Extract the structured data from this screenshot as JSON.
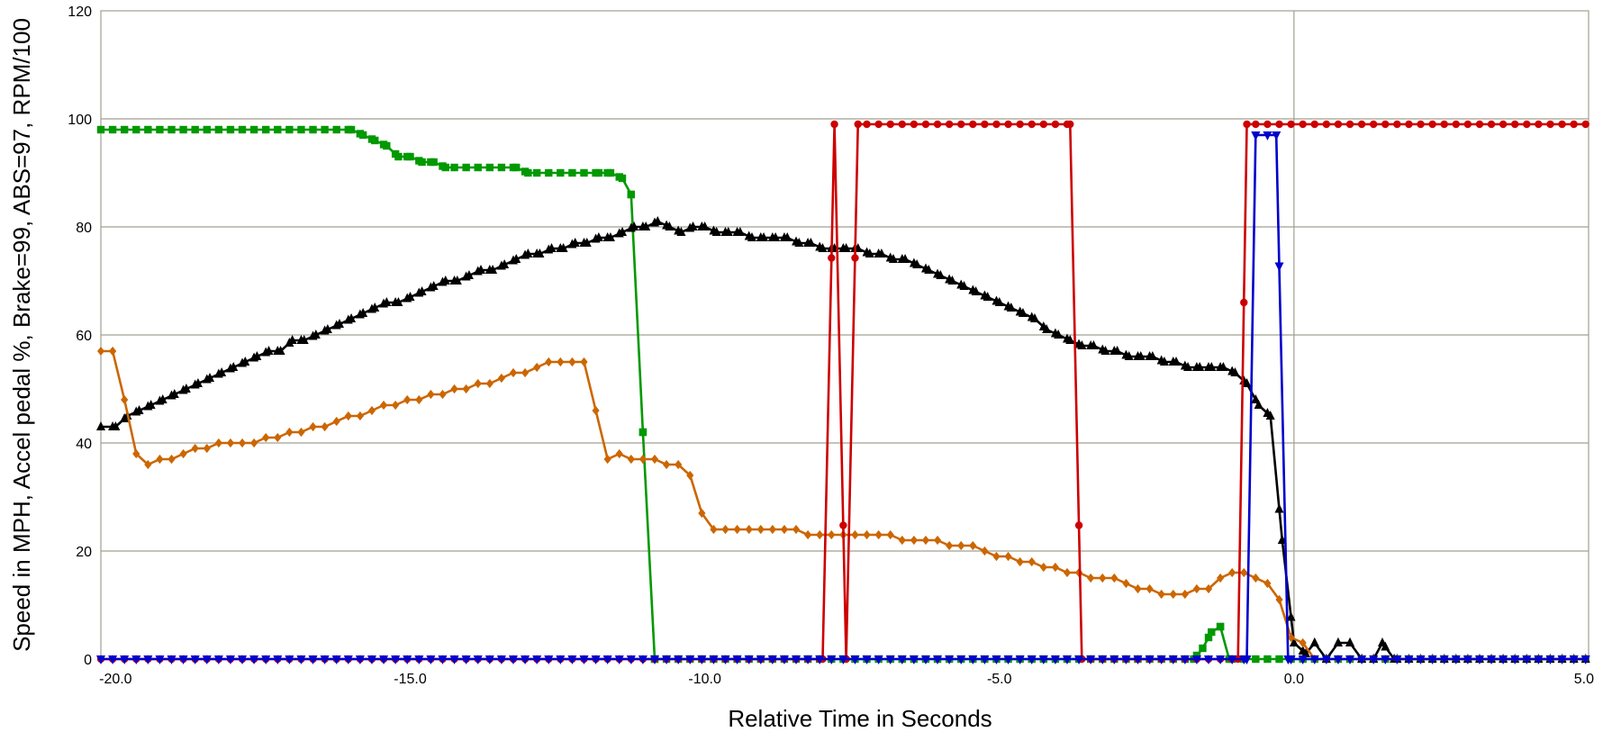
{
  "chart_data": {
    "type": "line",
    "title": "",
    "xlabel": "Relative Time in Seconds",
    "ylabel": "Speed in MPH, Accel pedal %, Brake=99, ABS=97, RPM/100",
    "xlim": [
      -20.25,
      5.0
    ],
    "ylim": [
      0,
      120
    ],
    "x_ticks": [
      -20.0,
      -15.0,
      -10.0,
      -5.0,
      0.0,
      5.0
    ],
    "x_tick_labels": [
      "-20.0",
      "-15.0",
      "-10.0",
      "-5.0",
      "0.0",
      "5.0"
    ],
    "y_ticks": [
      0,
      20,
      40,
      60,
      80,
      100,
      120
    ],
    "y_tick_labels": [
      "0",
      "20",
      "40",
      "60",
      "80",
      "100",
      "120"
    ],
    "grid": true,
    "reference_line_x": 0.0,
    "legend": "none",
    "series": [
      {
        "color": "#009900",
        "marker": "square",
        "points": [
          [
            -20.25,
            98
          ],
          [
            -16.0,
            98
          ],
          [
            -15.8,
            97
          ],
          [
            -15.6,
            96
          ],
          [
            -15.4,
            95
          ],
          [
            -15.2,
            93
          ],
          [
            -15.0,
            93
          ],
          [
            -14.8,
            92
          ],
          [
            -14.6,
            92
          ],
          [
            -14.4,
            91
          ],
          [
            -13.2,
            91
          ],
          [
            -13.0,
            90
          ],
          [
            -11.8,
            90
          ],
          [
            -11.6,
            90
          ],
          [
            -11.4,
            89
          ],
          [
            -11.25,
            86
          ],
          [
            -11.05,
            42
          ],
          [
            -10.85,
            0
          ],
          [
            -1.7,
            0
          ],
          [
            -1.55,
            2
          ],
          [
            -1.4,
            5
          ],
          [
            -1.25,
            6
          ],
          [
            -1.1,
            0
          ],
          [
            5.0,
            0
          ]
        ]
      },
      {
        "color": "#000000",
        "marker": "triangle-up",
        "points": [
          [
            -20.25,
            43
          ],
          [
            -20.0,
            43
          ],
          [
            -19.8,
            45
          ],
          [
            -19.6,
            46
          ],
          [
            -19.4,
            47
          ],
          [
            -19.2,
            48
          ],
          [
            -19.0,
            49
          ],
          [
            -18.8,
            50
          ],
          [
            -18.6,
            51
          ],
          [
            -18.4,
            52
          ],
          [
            -18.2,
            53
          ],
          [
            -18.0,
            54
          ],
          [
            -17.8,
            55
          ],
          [
            -17.6,
            56
          ],
          [
            -17.4,
            57
          ],
          [
            -17.2,
            57
          ],
          [
            -17.0,
            59
          ],
          [
            -16.8,
            59
          ],
          [
            -16.6,
            60
          ],
          [
            -16.4,
            61
          ],
          [
            -16.2,
            62
          ],
          [
            -16.0,
            63
          ],
          [
            -15.8,
            64
          ],
          [
            -15.6,
            65
          ],
          [
            -15.4,
            66
          ],
          [
            -15.2,
            66
          ],
          [
            -15.0,
            67
          ],
          [
            -14.8,
            68
          ],
          [
            -14.6,
            69
          ],
          [
            -14.4,
            70
          ],
          [
            -14.2,
            70
          ],
          [
            -14.0,
            71
          ],
          [
            -13.8,
            72
          ],
          [
            -13.6,
            72
          ],
          [
            -13.4,
            73
          ],
          [
            -13.2,
            74
          ],
          [
            -13.0,
            75
          ],
          [
            -12.8,
            75
          ],
          [
            -12.6,
            76
          ],
          [
            -12.4,
            76
          ],
          [
            -12.2,
            77
          ],
          [
            -12.0,
            77
          ],
          [
            -11.8,
            78
          ],
          [
            -11.6,
            78
          ],
          [
            -11.4,
            79
          ],
          [
            -11.2,
            80
          ],
          [
            -11.0,
            80
          ],
          [
            -10.8,
            81
          ],
          [
            -10.6,
            80
          ],
          [
            -10.4,
            79
          ],
          [
            -10.2,
            80
          ],
          [
            -10.0,
            80
          ],
          [
            -9.8,
            79
          ],
          [
            -9.6,
            79
          ],
          [
            -9.4,
            79
          ],
          [
            -9.2,
            78
          ],
          [
            -9.0,
            78
          ],
          [
            -8.8,
            78
          ],
          [
            -8.6,
            78
          ],
          [
            -8.4,
            77
          ],
          [
            -8.2,
            77
          ],
          [
            -8.0,
            76
          ],
          [
            -7.8,
            76
          ],
          [
            -7.6,
            76
          ],
          [
            -7.4,
            76
          ],
          [
            -7.2,
            75
          ],
          [
            -7.0,
            75
          ],
          [
            -6.8,
            74
          ],
          [
            -6.6,
            74
          ],
          [
            -6.4,
            73
          ],
          [
            -6.2,
            72
          ],
          [
            -6.0,
            71
          ],
          [
            -5.8,
            70
          ],
          [
            -5.6,
            69
          ],
          [
            -5.4,
            68
          ],
          [
            -5.2,
            67
          ],
          [
            -5.0,
            66
          ],
          [
            -4.8,
            65
          ],
          [
            -4.6,
            64
          ],
          [
            -4.4,
            63
          ],
          [
            -4.2,
            61
          ],
          [
            -4.0,
            60
          ],
          [
            -3.8,
            59
          ],
          [
            -3.6,
            58
          ],
          [
            -3.4,
            58
          ],
          [
            -3.2,
            57
          ],
          [
            -3.0,
            57
          ],
          [
            -2.8,
            56
          ],
          [
            -2.6,
            56
          ],
          [
            -2.4,
            56
          ],
          [
            -2.2,
            55
          ],
          [
            -2.0,
            55
          ],
          [
            -1.8,
            54
          ],
          [
            -1.6,
            54
          ],
          [
            -1.4,
            54
          ],
          [
            -1.2,
            54
          ],
          [
            -1.0,
            53
          ],
          [
            -0.8,
            51
          ],
          [
            -0.6,
            47
          ],
          [
            -0.4,
            45
          ],
          [
            -0.2,
            22
          ],
          [
            0.0,
            3
          ],
          [
            0.2,
            1
          ],
          [
            0.35,
            3
          ],
          [
            0.55,
            0
          ],
          [
            0.75,
            3
          ],
          [
            0.95,
            3
          ],
          [
            1.15,
            0
          ],
          [
            1.35,
            0
          ],
          [
            1.5,
            3
          ],
          [
            1.7,
            0
          ],
          [
            5.0,
            0
          ]
        ]
      },
      {
        "color": "#CC6600",
        "marker": "diamond",
        "points": [
          [
            -20.25,
            57
          ],
          [
            -20.05,
            57
          ],
          [
            -19.85,
            48
          ],
          [
            -19.65,
            38
          ],
          [
            -19.45,
            36
          ],
          [
            -19.25,
            37
          ],
          [
            -19.05,
            37
          ],
          [
            -18.85,
            38
          ],
          [
            -18.65,
            39
          ],
          [
            -18.45,
            39
          ],
          [
            -18.25,
            40
          ],
          [
            -18.05,
            40
          ],
          [
            -17.85,
            40
          ],
          [
            -17.65,
            40
          ],
          [
            -17.45,
            41
          ],
          [
            -17.25,
            41
          ],
          [
            -17.05,
            42
          ],
          [
            -16.85,
            42
          ],
          [
            -16.65,
            43
          ],
          [
            -16.45,
            43
          ],
          [
            -16.25,
            44
          ],
          [
            -16.05,
            45
          ],
          [
            -15.85,
            45
          ],
          [
            -15.65,
            46
          ],
          [
            -15.45,
            47
          ],
          [
            -15.25,
            47
          ],
          [
            -15.05,
            48
          ],
          [
            -14.85,
            48
          ],
          [
            -14.65,
            49
          ],
          [
            -14.45,
            49
          ],
          [
            -14.25,
            50
          ],
          [
            -14.05,
            50
          ],
          [
            -13.85,
            51
          ],
          [
            -13.65,
            51
          ],
          [
            -13.45,
            52
          ],
          [
            -13.25,
            53
          ],
          [
            -13.05,
            53
          ],
          [
            -12.85,
            54
          ],
          [
            -12.65,
            55
          ],
          [
            -12.45,
            55
          ],
          [
            -12.25,
            55
          ],
          [
            -12.05,
            55
          ],
          [
            -11.85,
            46
          ],
          [
            -11.65,
            37
          ],
          [
            -11.45,
            38
          ],
          [
            -11.25,
            37
          ],
          [
            -11.05,
            37
          ],
          [
            -10.85,
            37
          ],
          [
            -10.65,
            36
          ],
          [
            -10.45,
            36
          ],
          [
            -10.25,
            34
          ],
          [
            -10.05,
            27
          ],
          [
            -9.85,
            24
          ],
          [
            -9.65,
            24
          ],
          [
            -9.45,
            24
          ],
          [
            -9.25,
            24
          ],
          [
            -9.05,
            24
          ],
          [
            -8.85,
            24
          ],
          [
            -8.65,
            24
          ],
          [
            -8.45,
            24
          ],
          [
            -8.25,
            23
          ],
          [
            -8.05,
            23
          ],
          [
            -7.85,
            23
          ],
          [
            -7.65,
            23
          ],
          [
            -7.45,
            23
          ],
          [
            -7.25,
            23
          ],
          [
            -7.05,
            23
          ],
          [
            -6.85,
            23
          ],
          [
            -6.65,
            22
          ],
          [
            -6.45,
            22
          ],
          [
            -6.25,
            22
          ],
          [
            -6.05,
            22
          ],
          [
            -5.85,
            21
          ],
          [
            -5.65,
            21
          ],
          [
            -5.45,
            21
          ],
          [
            -5.25,
            20
          ],
          [
            -5.05,
            19
          ],
          [
            -4.85,
            19
          ],
          [
            -4.65,
            18
          ],
          [
            -4.45,
            18
          ],
          [
            -4.25,
            17
          ],
          [
            -4.05,
            17
          ],
          [
            -3.85,
            16
          ],
          [
            -3.65,
            16
          ],
          [
            -3.45,
            15
          ],
          [
            -3.25,
            15
          ],
          [
            -3.05,
            15
          ],
          [
            -2.85,
            14
          ],
          [
            -2.65,
            13
          ],
          [
            -2.45,
            13
          ],
          [
            -2.25,
            12
          ],
          [
            -2.05,
            12
          ],
          [
            -1.85,
            12
          ],
          [
            -1.65,
            13
          ],
          [
            -1.45,
            13
          ],
          [
            -1.25,
            15
          ],
          [
            -1.05,
            16
          ],
          [
            -0.85,
            16
          ],
          [
            -0.65,
            15
          ],
          [
            -0.45,
            14
          ],
          [
            -0.25,
            11
          ],
          [
            -0.05,
            4
          ],
          [
            0.15,
            3
          ],
          [
            0.35,
            0
          ],
          [
            5.0,
            0
          ]
        ]
      },
      {
        "color": "#CC0000",
        "marker": "circle",
        "points": [
          [
            -20.25,
            0
          ],
          [
            -8.0,
            0
          ],
          [
            -7.8,
            99
          ],
          [
            -7.6,
            0
          ],
          [
            -7.4,
            99
          ],
          [
            -3.8,
            99
          ],
          [
            -3.6,
            0
          ],
          [
            -0.95,
            0
          ],
          [
            -0.8,
            99
          ],
          [
            5.0,
            99
          ]
        ]
      },
      {
        "color": "#0000CC",
        "marker": "triangle-down",
        "points": [
          [
            -20.25,
            0
          ],
          [
            -0.8,
            0
          ],
          [
            -0.65,
            97
          ],
          [
            -0.3,
            97
          ],
          [
            -0.1,
            0
          ],
          [
            5.0,
            0
          ]
        ]
      }
    ]
  }
}
